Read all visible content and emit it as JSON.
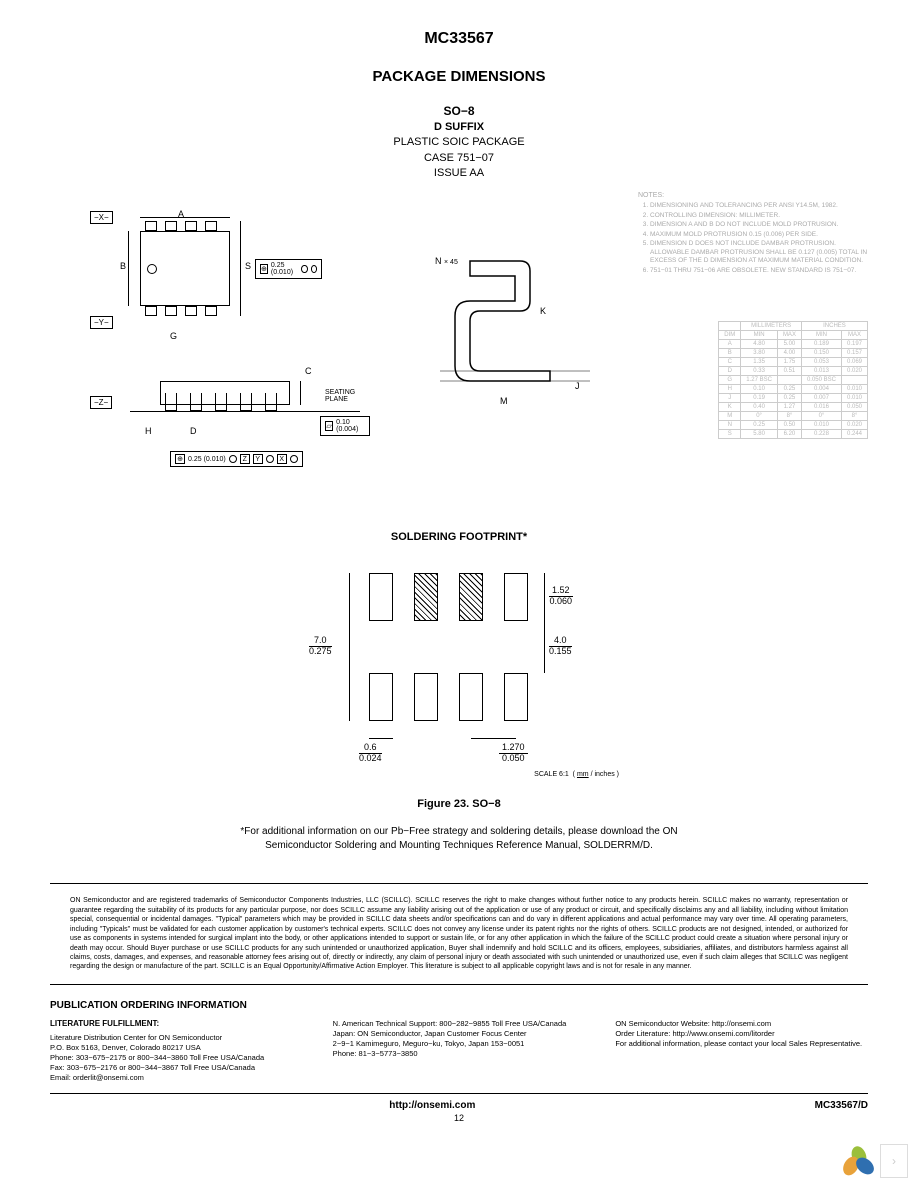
{
  "header": {
    "part_number": "MC33567",
    "section_title": "PACKAGE DIMENSIONS",
    "package": {
      "name": "SO−8",
      "suffix": "D SUFFIX",
      "desc": "PLASTIC SOIC PACKAGE",
      "case": "CASE 751−07",
      "issue": "ISSUE AA"
    }
  },
  "datums": {
    "x": "−X−",
    "y": "−Y−",
    "z": "−Z−"
  },
  "dim_letters": {
    "a": "A",
    "b": "B",
    "c": "C",
    "d": "D",
    "g": "G",
    "h": "H",
    "j": "J",
    "k": "K",
    "m": "M",
    "n": "N",
    "s": "S"
  },
  "callouts": {
    "s_tol": "0.25 (0.010)",
    "flat_tol": "0.10 (0.004)",
    "pos_tol": "0.25 (0.010)",
    "pos_refs": [
      "Z",
      "Y",
      "X"
    ],
    "n_angle": "× 45",
    "seating": "SEATING PLANE"
  },
  "notes": {
    "title": "NOTES:",
    "items": [
      "DIMENSIONING AND TOLERANCING PER ANSI Y14.5M, 1982.",
      "CONTROLLING DIMENSION: MILLIMETER.",
      "DIMENSION A AND B DO NOT INCLUDE MOLD PROTRUSION.",
      "MAXIMUM MOLD PROTRUSION 0.15 (0.006) PER SIDE.",
      "DIMENSION D DOES NOT INCLUDE DAMBAR PROTRUSION. ALLOWABLE DAMBAR PROTRUSION SHALL BE 0.127 (0.005) TOTAL IN EXCESS OF THE D DIMENSION AT MAXIMUM MATERIAL CONDITION.",
      "751−01 THRU 751−06 ARE OBSOLETE. NEW STANDARD IS 751−07."
    ]
  },
  "dim_table": {
    "unit_headers": [
      "MILLIMETERS",
      "INCHES"
    ],
    "sub_headers": [
      "DIM",
      "MIN",
      "MAX",
      "MIN",
      "MAX"
    ],
    "rows": [
      [
        "A",
        "4.80",
        "5.00",
        "0.189",
        "0.197"
      ],
      [
        "B",
        "3.80",
        "4.00",
        "0.150",
        "0.157"
      ],
      [
        "C",
        "1.35",
        "1.75",
        "0.053",
        "0.069"
      ],
      [
        "D",
        "0.33",
        "0.51",
        "0.013",
        "0.020"
      ],
      [
        "G",
        "1.27 BSC",
        "",
        "0.050 BSC",
        ""
      ],
      [
        "H",
        "0.10",
        "0.25",
        "0.004",
        "0.010"
      ],
      [
        "J",
        "0.19",
        "0.25",
        "0.007",
        "0.010"
      ],
      [
        "K",
        "0.40",
        "1.27",
        "0.016",
        "0.050"
      ],
      [
        "M",
        "0°",
        "8°",
        "0°",
        "8°"
      ],
      [
        "N",
        "0.25",
        "0.50",
        "0.010",
        "0.020"
      ],
      [
        "S",
        "5.80",
        "6.20",
        "0.228",
        "0.244"
      ]
    ]
  },
  "footprint": {
    "title": "SOLDERING FOOTPRINT*",
    "dims": {
      "pad_h_mm": "1.52",
      "pad_h_in": "0.060",
      "span_mm": "7.0",
      "span_in": "0.275",
      "gap_mm": "4.0",
      "gap_in": "0.155",
      "pad_w_mm": "0.6",
      "pad_w_in": "0.024",
      "pitch_mm": "1.270",
      "pitch_in": "0.050"
    },
    "scale_label": "SCALE 6:1",
    "units_top": "mm",
    "units_bot": "inches"
  },
  "figure_caption": "Figure 23. SO−8",
  "pb_free_note": "*For additional information on our Pb−Free strategy and soldering details, please download the ON Semiconductor Soldering and Mounting Techniques Reference Manual, SOLDERRM/D.",
  "disclaimer": "ON Semiconductor and           are registered trademarks of Semiconductor Components Industries, LLC (SCILLC). SCILLC reserves the right to make changes without further notice to any products herein. SCILLC makes no warranty, representation or guarantee regarding the suitability of its products for any particular purpose, nor does SCILLC assume any liability arising out of the application or use of any product or circuit, and specifically disclaims any and all liability, including without limitation special, consequential or incidental damages. \"Typical\" parameters which may be provided in SCILLC data sheets and/or specifications can and do vary in different applications and actual performance may vary over time. All operating parameters, including \"Typicals\" must be validated for each customer application by customer's technical experts. SCILLC does not convey any license under its patent rights nor the rights of others. SCILLC products are not designed, intended, or authorized for use as components in systems intended for surgical implant into the body, or other applications intended to support or sustain life, or for any other application in which the failure of the SCILLC product could create a situation where personal injury or death may occur. Should Buyer purchase or use SCILLC products for any such unintended or unauthorized application, Buyer shall indemnify and hold SCILLC and its officers, employees, subsidiaries, affiliates, and distributors harmless against all claims, costs, damages, and expenses, and reasonable attorney fees arising out of, directly or indirectly, any claim of personal injury or death associated with such unintended or unauthorized use, even if such claim alleges that SCILLC was negligent regarding the design or manufacture of the part. SCILLC is an Equal Opportunity/Affirmative Action Employer. This literature is subject to all applicable copyright laws and is not for resale in any manner.",
  "ordering": {
    "title": "PUBLICATION ORDERING INFORMATION",
    "col1": {
      "heading": "LITERATURE FULFILLMENT:",
      "lines": [
        "Literature Distribution Center for ON Semiconductor",
        "P.O. Box 5163, Denver, Colorado 80217 USA",
        "Phone: 303−675−2175 or 800−344−3860 Toll Free USA/Canada",
        "Fax: 303−675−2176 or 800−344−3867 Toll Free USA/Canada",
        "Email: orderlit@onsemi.com"
      ]
    },
    "col2": {
      "lines": [
        "N. American Technical Support: 800−282−9855 Toll Free USA/Canada",
        "",
        "Japan: ON Semiconductor, Japan Customer Focus Center",
        "2−9−1 Kamimeguro, Meguro−ku, Tokyo, Japan 153−0051",
        "Phone: 81−3−5773−3850"
      ]
    },
    "col3": {
      "lines": [
        "ON Semiconductor Website: http://onsemi.com",
        "",
        "Order Literature: http://www.onsemi.com/litorder",
        "",
        "For additional information, please contact your local Sales Representative."
      ]
    }
  },
  "footer": {
    "url": "http://onsemi.com",
    "page": "12",
    "doc": "MC33567/D"
  },
  "colors": {
    "petal_green": "#9bbf3b",
    "petal_blue": "#2f6fb0",
    "petal_orange": "#e8a23a",
    "nav_border": "#dddddd"
  }
}
